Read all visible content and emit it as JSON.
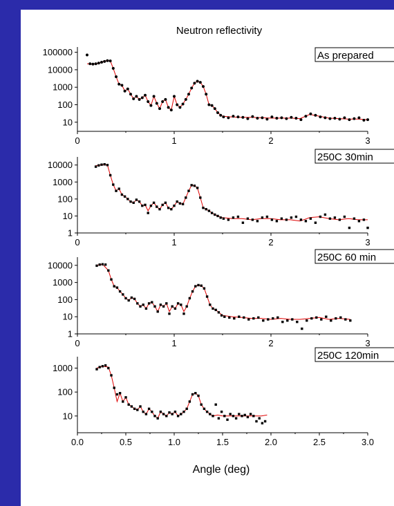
{
  "figure": {
    "title": "Neutron reflectivity",
    "xlabel": "Angle (deg)"
  },
  "colors": {
    "background": "#2b2baa",
    "panel": "#ffffff",
    "fit_line": "#e00000",
    "points": "#000000"
  },
  "chart_data": [
    {
      "type": "scatter",
      "label": "As prepared",
      "ylabel": "",
      "xlim": [
        0,
        3
      ],
      "ylim": [
        3,
        200000
      ],
      "yscale": "log",
      "x_ticks": [
        "0",
        "1",
        "2",
        "3"
      ],
      "y_ticks": [
        "10",
        "100",
        "1000",
        "10000",
        "100000"
      ],
      "series": [
        {
          "style": "points",
          "x": [
            0.1,
            0.13,
            0.16,
            0.19,
            0.22,
            0.25,
            0.28,
            0.31,
            0.34,
            0.37,
            0.4,
            0.43,
            0.46,
            0.49,
            0.52,
            0.55,
            0.58,
            0.61,
            0.64,
            0.67,
            0.7,
            0.73,
            0.76,
            0.79,
            0.82,
            0.85,
            0.88,
            0.91,
            0.94,
            0.97,
            1.0,
            1.03,
            1.06,
            1.09,
            1.12,
            1.15,
            1.18,
            1.21,
            1.24,
            1.27,
            1.3,
            1.33,
            1.36,
            1.39,
            1.42,
            1.45,
            1.48,
            1.51,
            1.56,
            1.61,
            1.66,
            1.71,
            1.76,
            1.81,
            1.86,
            1.91,
            1.96,
            2.01,
            2.06,
            2.11,
            2.16,
            2.21,
            2.26,
            2.31,
            2.36,
            2.41,
            2.46,
            2.51,
            2.56,
            2.61,
            2.66,
            2.71,
            2.76,
            2.81,
            2.86,
            2.91,
            2.96,
            3.0
          ],
          "y": [
            70000,
            22000,
            21000,
            22000,
            24000,
            27000,
            30000,
            33000,
            32000,
            12000,
            4000,
            1500,
            1300,
            600,
            800,
            400,
            220,
            300,
            200,
            250,
            350,
            150,
            90,
            300,
            120,
            60,
            150,
            200,
            70,
            50,
            300,
            100,
            70,
            110,
            200,
            400,
            900,
            1700,
            2200,
            1900,
            1100,
            400,
            100,
            90,
            60,
            35,
            25,
            20,
            18,
            22,
            20,
            19,
            16,
            21,
            17,
            18,
            15,
            20,
            17,
            18,
            16,
            19,
            17,
            14,
            22,
            30,
            25,
            20,
            18,
            16,
            17,
            15,
            18,
            14,
            16,
            18,
            13,
            14
          ]
        },
        {
          "style": "fit",
          "x": [
            0.1,
            0.15,
            0.2,
            0.25,
            0.3,
            0.34,
            0.37,
            0.4,
            0.43,
            0.46,
            0.49,
            0.52,
            0.55,
            0.58,
            0.61,
            0.64,
            0.67,
            0.7,
            0.73,
            0.76,
            0.79,
            0.82,
            0.85,
            0.88,
            0.91,
            0.94,
            0.97,
            1.0,
            1.03,
            1.06,
            1.09,
            1.12,
            1.15,
            1.18,
            1.21,
            1.24,
            1.27,
            1.3,
            1.33,
            1.36,
            1.39,
            1.42,
            1.45,
            1.5,
            1.6,
            1.7,
            1.8,
            1.9,
            2.0,
            2.1,
            2.2,
            2.3,
            2.4,
            2.5,
            2.6,
            2.7,
            2.8,
            2.9,
            3.0
          ],
          "y": [
            22000,
            21000,
            22000,
            27000,
            33000,
            32000,
            12000,
            4000,
            1500,
            1300,
            600,
            800,
            400,
            220,
            300,
            200,
            250,
            350,
            150,
            90,
            300,
            120,
            60,
            150,
            200,
            70,
            50,
            300,
            100,
            70,
            110,
            200,
            400,
            900,
            1700,
            2200,
            1900,
            1100,
            400,
            100,
            90,
            60,
            35,
            22,
            20,
            19,
            19,
            18,
            17,
            17,
            17,
            16,
            28,
            22,
            17,
            16,
            15,
            15,
            14
          ]
        }
      ]
    },
    {
      "type": "scatter",
      "label": "250C 30min",
      "ylabel": "",
      "xlim": [
        0,
        3
      ],
      "ylim": [
        1,
        30000
      ],
      "yscale": "log",
      "x_ticks": [
        "0",
        "1",
        "2",
        "3"
      ],
      "y_ticks": [
        "1",
        "10",
        "100",
        "1000",
        "10000"
      ],
      "series": [
        {
          "style": "points",
          "x": [
            0.19,
            0.22,
            0.25,
            0.28,
            0.31,
            0.34,
            0.37,
            0.4,
            0.43,
            0.46,
            0.49,
            0.52,
            0.55,
            0.58,
            0.61,
            0.64,
            0.67,
            0.7,
            0.73,
            0.76,
            0.79,
            0.82,
            0.85,
            0.88,
            0.91,
            0.94,
            0.97,
            1.0,
            1.03,
            1.06,
            1.09,
            1.12,
            1.15,
            1.18,
            1.21,
            1.24,
            1.27,
            1.3,
            1.33,
            1.36,
            1.39,
            1.42,
            1.45,
            1.48,
            1.51,
            1.56,
            1.61,
            1.66,
            1.71,
            1.76,
            1.81,
            1.86,
            1.91,
            1.96,
            2.01,
            2.06,
            2.11,
            2.16,
            2.21,
            2.26,
            2.31,
            2.36,
            2.41,
            2.46,
            2.51,
            2.56,
            2.61,
            2.66,
            2.71,
            2.76,
            2.81,
            2.86,
            2.91,
            2.96,
            3.0
          ],
          "y": [
            8000,
            9500,
            10500,
            11000,
            10000,
            2500,
            700,
            300,
            400,
            180,
            140,
            100,
            70,
            60,
            90,
            70,
            40,
            45,
            15,
            40,
            60,
            35,
            25,
            45,
            60,
            30,
            25,
            40,
            70,
            55,
            50,
            120,
            300,
            650,
            600,
            450,
            120,
            30,
            25,
            20,
            15,
            12,
            10,
            8,
            7,
            6,
            8,
            9,
            4,
            7,
            6,
            5,
            8,
            9,
            6,
            5,
            7,
            6,
            8,
            9,
            6,
            5,
            7,
            4,
            9,
            12,
            7,
            8,
            6,
            9,
            2,
            7,
            5,
            6,
            2
          ]
        },
        {
          "style": "fit",
          "x": [
            0.19,
            0.25,
            0.31,
            0.34,
            0.37,
            0.4,
            0.43,
            0.46,
            0.49,
            0.52,
            0.55,
            0.58,
            0.61,
            0.64,
            0.67,
            0.7,
            0.73,
            0.76,
            0.79,
            0.82,
            0.85,
            0.88,
            0.91,
            0.94,
            0.97,
            1.0,
            1.03,
            1.06,
            1.09,
            1.12,
            1.15,
            1.18,
            1.21,
            1.24,
            1.27,
            1.3,
            1.33,
            1.36,
            1.39,
            1.42,
            1.45,
            1.5,
            1.6,
            1.7,
            1.8,
            1.9,
            2.0,
            2.1,
            2.2,
            2.3,
            2.4,
            2.5,
            2.6,
            2.7,
            2.8,
            2.9,
            3.0
          ],
          "y": [
            9000,
            10500,
            10000,
            2500,
            700,
            300,
            400,
            180,
            140,
            100,
            70,
            60,
            90,
            70,
            40,
            45,
            20,
            40,
            60,
            35,
            25,
            45,
            60,
            30,
            25,
            40,
            70,
            55,
            50,
            120,
            300,
            650,
            600,
            450,
            120,
            30,
            25,
            20,
            15,
            12,
            10,
            8,
            7,
            7,
            6,
            7,
            7,
            6,
            6,
            5,
            8,
            9,
            7,
            6,
            7,
            6,
            6
          ]
        }
      ]
    },
    {
      "type": "scatter",
      "label": "250C 60 min",
      "ylabel": "",
      "xlim": [
        0,
        3
      ],
      "ylim": [
        1,
        30000
      ],
      "yscale": "log",
      "x_ticks": [
        "0",
        "1",
        "2",
        "3"
      ],
      "y_ticks": [
        "1",
        "10",
        "100",
        "1000",
        "10000"
      ],
      "series": [
        {
          "style": "points",
          "x": [
            0.2,
            0.23,
            0.26,
            0.29,
            0.32,
            0.35,
            0.38,
            0.41,
            0.44,
            0.47,
            0.5,
            0.53,
            0.56,
            0.59,
            0.62,
            0.65,
            0.68,
            0.71,
            0.74,
            0.77,
            0.8,
            0.83,
            0.86,
            0.89,
            0.92,
            0.95,
            0.98,
            1.01,
            1.04,
            1.07,
            1.1,
            1.13,
            1.16,
            1.19,
            1.22,
            1.25,
            1.28,
            1.31,
            1.34,
            1.37,
            1.4,
            1.43,
            1.46,
            1.49,
            1.52,
            1.57,
            1.62,
            1.67,
            1.72,
            1.77,
            1.82,
            1.87,
            1.92,
            1.97,
            2.02,
            2.07,
            2.12,
            2.17,
            2.22,
            2.27,
            2.32,
            2.37,
            2.42,
            2.47,
            2.52,
            2.57,
            2.62,
            2.67,
            2.72,
            2.77,
            2.82
          ],
          "y": [
            9500,
            11000,
            11500,
            11000,
            5000,
            1500,
            600,
            500,
            300,
            200,
            120,
            90,
            130,
            110,
            60,
            40,
            50,
            30,
            60,
            70,
            40,
            20,
            50,
            40,
            60,
            15,
            40,
            30,
            60,
            50,
            15,
            40,
            120,
            300,
            600,
            700,
            650,
            450,
            150,
            50,
            30,
            25,
            18,
            12,
            10,
            9,
            8,
            10,
            9,
            7,
            8,
            9,
            6,
            7,
            8,
            9,
            5,
            6,
            7,
            5,
            2,
            6,
            8,
            9,
            7,
            10,
            6,
            8,
            9,
            7,
            6
          ]
        },
        {
          "style": "fit",
          "x": [
            0.2,
            0.26,
            0.32,
            0.35,
            0.38,
            0.41,
            0.44,
            0.47,
            0.5,
            0.53,
            0.56,
            0.59,
            0.62,
            0.65,
            0.68,
            0.71,
            0.74,
            0.77,
            0.8,
            0.83,
            0.86,
            0.89,
            0.92,
            0.95,
            0.98,
            1.01,
            1.04,
            1.07,
            1.1,
            1.13,
            1.16,
            1.19,
            1.22,
            1.25,
            1.28,
            1.31,
            1.34,
            1.37,
            1.4,
            1.43,
            1.46,
            1.5,
            1.6,
            1.7,
            1.8,
            1.9,
            2.0,
            2.1,
            2.2,
            2.3,
            2.4,
            2.5,
            2.6,
            2.7,
            2.82
          ],
          "y": [
            10000,
            11500,
            5000,
            1500,
            600,
            500,
            300,
            200,
            120,
            90,
            130,
            110,
            60,
            40,
            50,
            30,
            60,
            70,
            40,
            20,
            50,
            40,
            60,
            20,
            40,
            30,
            60,
            50,
            20,
            40,
            120,
            300,
            600,
            700,
            650,
            450,
            150,
            50,
            30,
            25,
            18,
            12,
            10,
            9,
            8,
            8,
            7,
            8,
            7,
            7,
            8,
            9,
            7,
            8,
            7
          ]
        }
      ]
    },
    {
      "type": "scatter",
      "label": "250C 120min",
      "ylabel": "",
      "xlim": [
        0,
        3
      ],
      "ylim": [
        2,
        3000
      ],
      "yscale": "log",
      "x_ticks": [
        "0.0",
        "0.5",
        "1.0",
        "1.5",
        "2.0",
        "2.5",
        "3.0"
      ],
      "y_ticks": [
        "10",
        "100",
        "1000"
      ],
      "series": [
        {
          "style": "points",
          "x": [
            0.2,
            0.23,
            0.26,
            0.29,
            0.32,
            0.35,
            0.38,
            0.41,
            0.44,
            0.47,
            0.5,
            0.53,
            0.56,
            0.59,
            0.62,
            0.65,
            0.68,
            0.71,
            0.74,
            0.77,
            0.8,
            0.83,
            0.86,
            0.89,
            0.92,
            0.95,
            0.98,
            1.01,
            1.04,
            1.07,
            1.1,
            1.13,
            1.16,
            1.19,
            1.22,
            1.25,
            1.28,
            1.31,
            1.34,
            1.37,
            1.4,
            1.43,
            1.46,
            1.49,
            1.52,
            1.55,
            1.58,
            1.61,
            1.64,
            1.67,
            1.7,
            1.73,
            1.76,
            1.79,
            1.82,
            1.85,
            1.88,
            1.91,
            1.94
          ],
          "y": [
            900,
            1100,
            1200,
            1300,
            1000,
            500,
            150,
            80,
            90,
            40,
            60,
            30,
            25,
            20,
            18,
            25,
            15,
            12,
            20,
            15,
            10,
            8,
            15,
            12,
            10,
            14,
            12,
            15,
            10,
            12,
            15,
            20,
            40,
            80,
            90,
            70,
            30,
            20,
            15,
            12,
            10,
            30,
            8,
            15,
            10,
            7,
            12,
            10,
            8,
            12,
            10,
            11,
            9,
            12,
            10,
            6,
            8,
            5,
            6
          ]
        },
        {
          "style": "fit",
          "x": [
            0.2,
            0.26,
            0.32,
            0.35,
            0.38,
            0.41,
            0.44,
            0.47,
            0.5,
            0.53,
            0.56,
            0.59,
            0.62,
            0.65,
            0.68,
            0.71,
            0.74,
            0.77,
            0.8,
            0.83,
            0.86,
            0.89,
            0.92,
            0.95,
            0.98,
            1.01,
            1.04,
            1.07,
            1.1,
            1.13,
            1.16,
            1.19,
            1.22,
            1.25,
            1.28,
            1.31,
            1.34,
            1.37,
            1.4,
            1.45,
            1.5,
            1.6,
            1.7,
            1.8,
            1.9,
            1.96
          ],
          "y": [
            1000,
            1200,
            1100,
            500,
            150,
            40,
            90,
            40,
            60,
            30,
            25,
            20,
            18,
            25,
            15,
            12,
            20,
            15,
            10,
            8,
            15,
            12,
            10,
            14,
            12,
            15,
            10,
            12,
            15,
            20,
            40,
            80,
            90,
            70,
            30,
            20,
            15,
            12,
            10,
            11,
            10,
            10,
            10,
            10,
            10,
            11
          ]
        }
      ]
    }
  ]
}
